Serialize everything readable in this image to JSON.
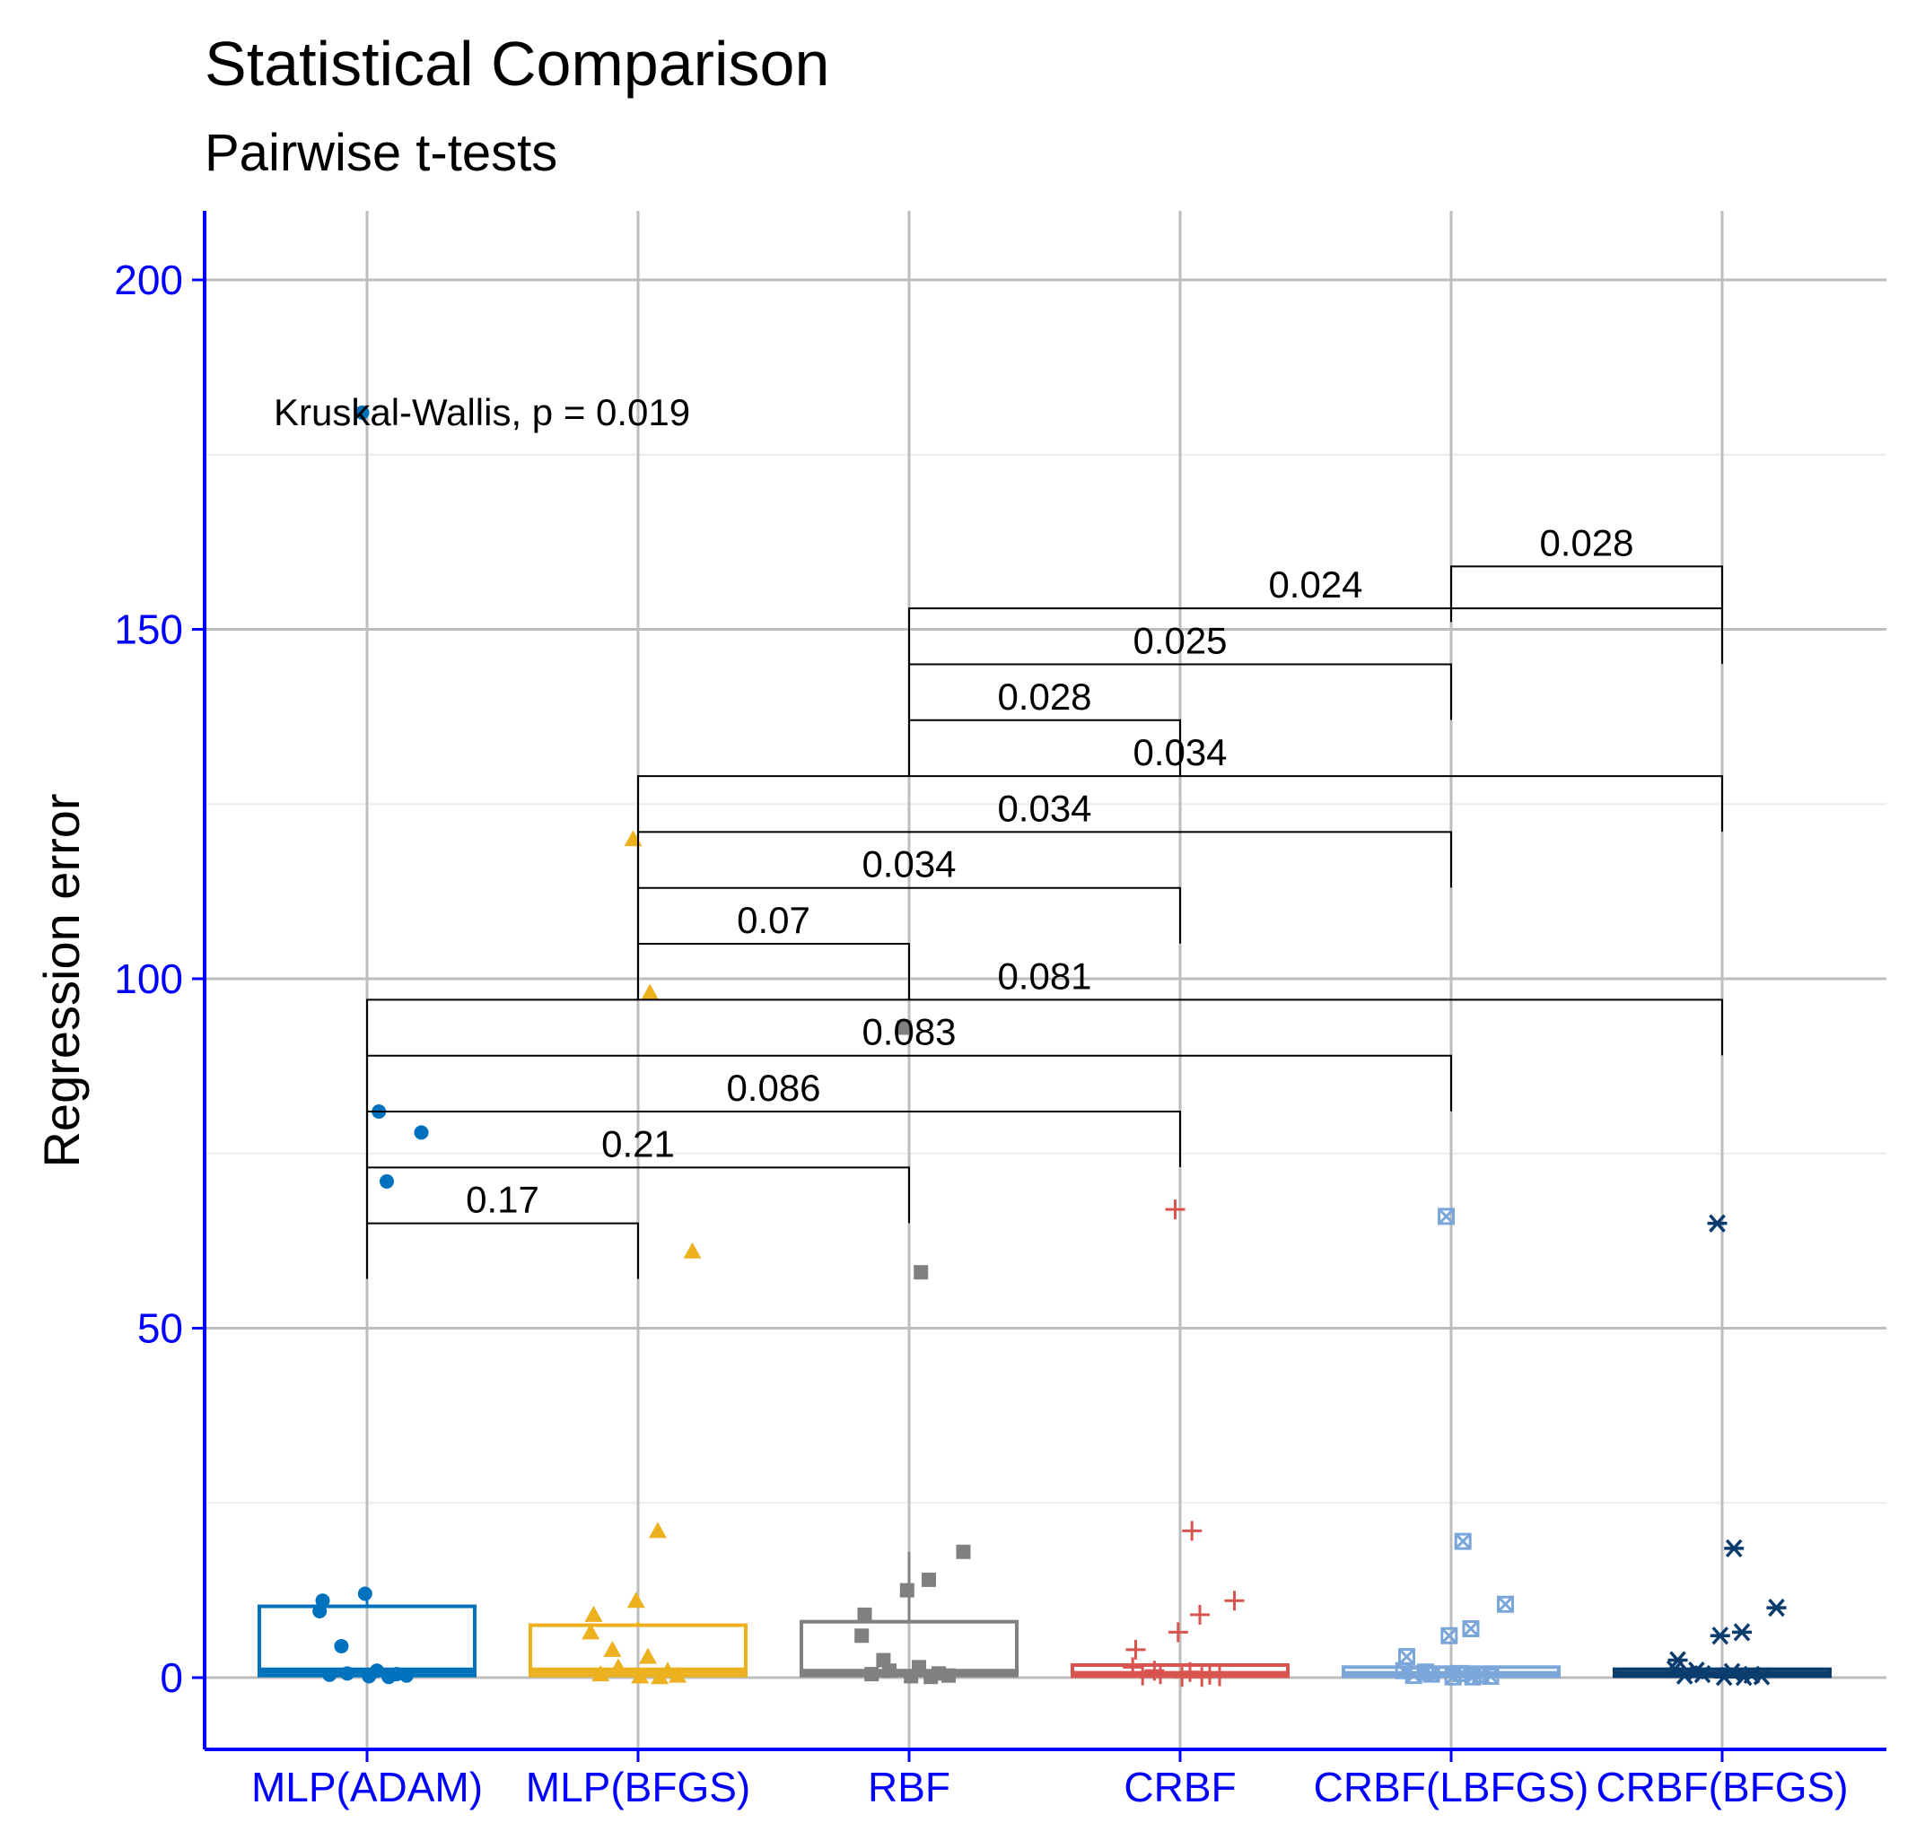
{
  "chart_data": {
    "type": "box",
    "title": "Statistical Comparison",
    "subtitle": "Pairwise t-tests",
    "ylabel": "Regression error",
    "xlabel": "",
    "ylim": [
      -10,
      210
    ],
    "yticks": [
      0,
      50,
      100,
      150,
      200
    ],
    "categories": [
      "MLP(ADAM)",
      "MLP(BFGS)",
      "RBF",
      "CRBF",
      "CRBF(LBFGS)",
      "CRBF(BFGS)"
    ],
    "series": [
      {
        "color": "#0072bd",
        "shape": "circle",
        "box": {
          "q1": 0.3,
          "median": 1.0,
          "q3": 10.2,
          "whisker_hi": 11.8
        },
        "points": [
          181,
          81,
          78,
          71,
          12,
          11,
          9.5,
          4.5,
          1,
          0.6,
          0.5,
          0.4,
          0.3,
          0.2,
          0.1
        ]
      },
      {
        "color": "#edb120",
        "shape": "triangle",
        "box": {
          "q1": 0.3,
          "median": 1.0,
          "q3": 7.5,
          "whisker_hi": 8
        },
        "points": [
          120,
          98,
          61,
          21,
          11,
          9,
          6.5,
          4,
          3,
          1.5,
          1,
          0.5,
          0.3,
          0.2,
          0.1
        ]
      },
      {
        "color": "#808080",
        "shape": "square",
        "box": {
          "q1": 0.3,
          "median": 0.8,
          "q3": 8,
          "whisker_hi": 18
        },
        "points": [
          93,
          58,
          18,
          14,
          12.5,
          9,
          6,
          2.5,
          1.5,
          1,
          0.6,
          0.5,
          0.3,
          0.2,
          0.1
        ]
      },
      {
        "color": "#d9534f",
        "shape": "plus",
        "box": {
          "q1": 0.2,
          "median": 0.5,
          "q3": 1.8,
          "whisker_hi": 2
        },
        "points": [
          67,
          21,
          11,
          9,
          6.5,
          4,
          1.5,
          1,
          0.8,
          0.5,
          0.4,
          0.3,
          0.2,
          0.1,
          0.1
        ]
      },
      {
        "color": "#7aa6da",
        "shape": "boxcross",
        "box": {
          "q1": 0.2,
          "median": 0.5,
          "q3": 1.5,
          "whisker_hi": 1.8
        },
        "points": [
          66,
          19.5,
          10.5,
          7,
          6,
          3,
          1,
          0.8,
          0.6,
          0.5,
          0.4,
          0.3,
          0.2,
          0.1,
          0.1
        ]
      },
      {
        "color": "#0b3c6e",
        "shape": "asterisk",
        "box": {
          "q1": 0.2,
          "median": 0.5,
          "q3": 1.2,
          "whisker_hi": 1.5
        },
        "points": [
          65,
          18.5,
          10,
          6.5,
          6,
          2.5,
          1.2,
          1,
          0.8,
          0.5,
          0.4,
          0.3,
          0.2,
          0.1,
          0.1
        ]
      }
    ],
    "kruskal_wallis": "Kruskal-Wallis, p = 0.019",
    "comparisons": [
      {
        "groups": [
          "MLP(ADAM)",
          "MLP(BFGS)"
        ],
        "p": "0.17",
        "y": 65
      },
      {
        "groups": [
          "MLP(ADAM)",
          "RBF"
        ],
        "p": "0.21",
        "y": 73
      },
      {
        "groups": [
          "MLP(ADAM)",
          "CRBF"
        ],
        "p": "0.086",
        "y": 81
      },
      {
        "groups": [
          "MLP(ADAM)",
          "CRBF(LBFGS)"
        ],
        "p": "0.083",
        "y": 89
      },
      {
        "groups": [
          "MLP(ADAM)",
          "CRBF(BFGS)"
        ],
        "p": "0.081",
        "y": 97
      },
      {
        "groups": [
          "MLP(BFGS)",
          "RBF"
        ],
        "p": "0.07",
        "y": 105
      },
      {
        "groups": [
          "MLP(BFGS)",
          "CRBF"
        ],
        "p": "0.034",
        "y": 113
      },
      {
        "groups": [
          "MLP(BFGS)",
          "CRBF(LBFGS)"
        ],
        "p": "0.034",
        "y": 121
      },
      {
        "groups": [
          "MLP(BFGS)",
          "CRBF(BFGS)"
        ],
        "p": "0.034",
        "y": 129
      },
      {
        "groups": [
          "RBF",
          "CRBF"
        ],
        "p": "0.028",
        "y": 137
      },
      {
        "groups": [
          "RBF",
          "CRBF(LBFGS)"
        ],
        "p": "0.025",
        "y": 145
      },
      {
        "groups": [
          "RBF",
          "CRBF(BFGS)"
        ],
        "p": "0.024",
        "y": 153
      },
      {
        "groups": [
          "CRBF(LBFGS)",
          "CRBF(BFGS)"
        ],
        "p": "0.028",
        "y": 159
      }
    ],
    "grid": true,
    "legend": "none"
  }
}
